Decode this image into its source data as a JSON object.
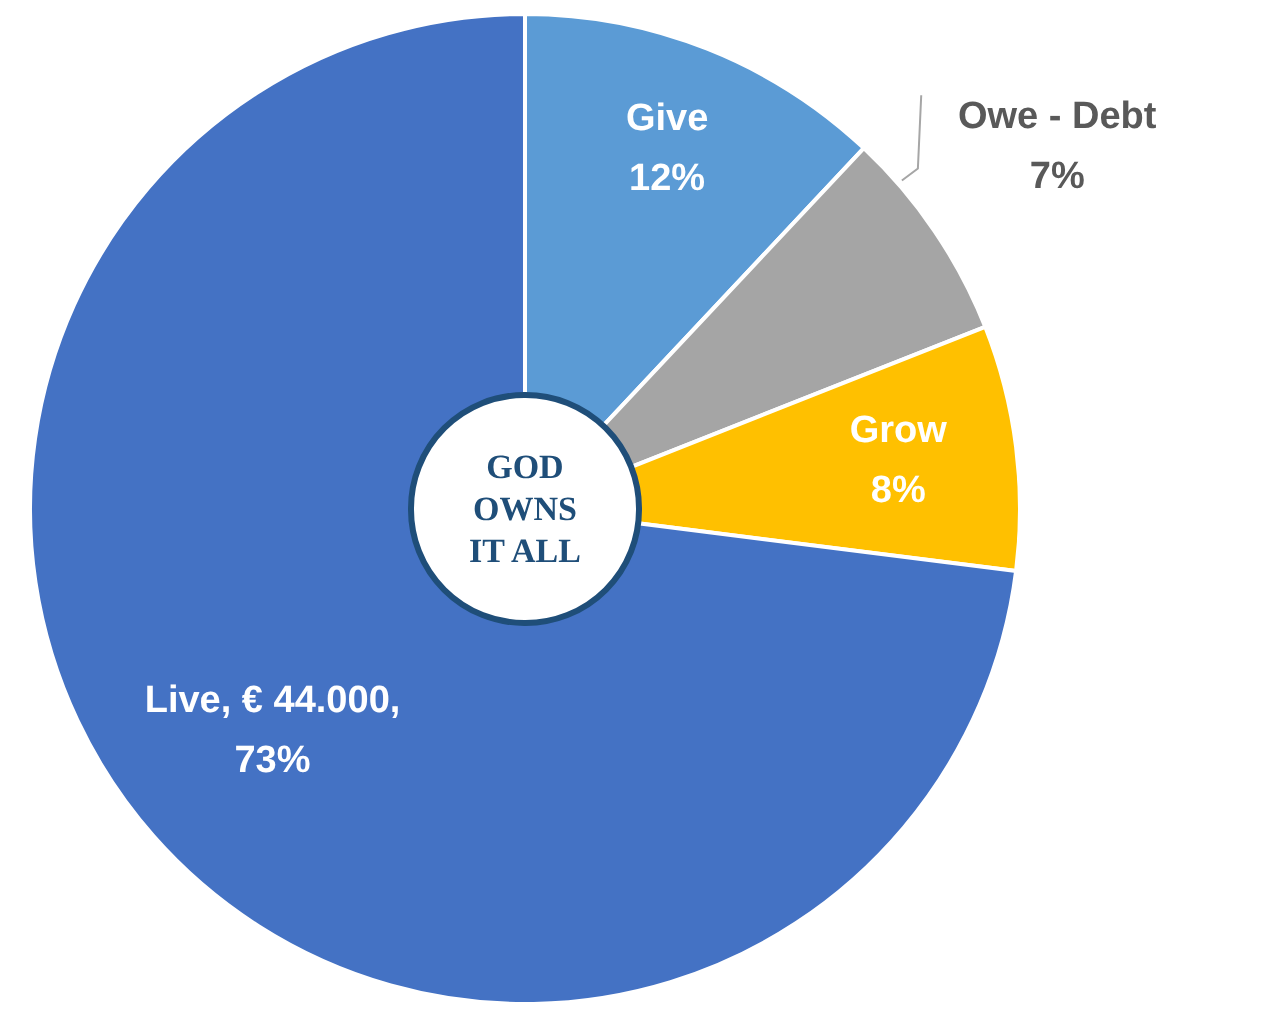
{
  "chart_data": {
    "type": "donut",
    "categories": [
      "Give",
      "Owe - Debt",
      "Grow",
      "Live"
    ],
    "values": [
      12,
      7,
      8,
      73
    ],
    "colors": [
      "#5b9bd5",
      "#a5a5a5",
      "#ffc000",
      "#4472c4"
    ],
    "value_labels": [
      "\n12%",
      "\n7%",
      "\n8%",
      ", € 44.000,\n73%"
    ],
    "annotations": [
      "GOD OWNS IT ALL"
    ],
    "legend": false
  }
}
